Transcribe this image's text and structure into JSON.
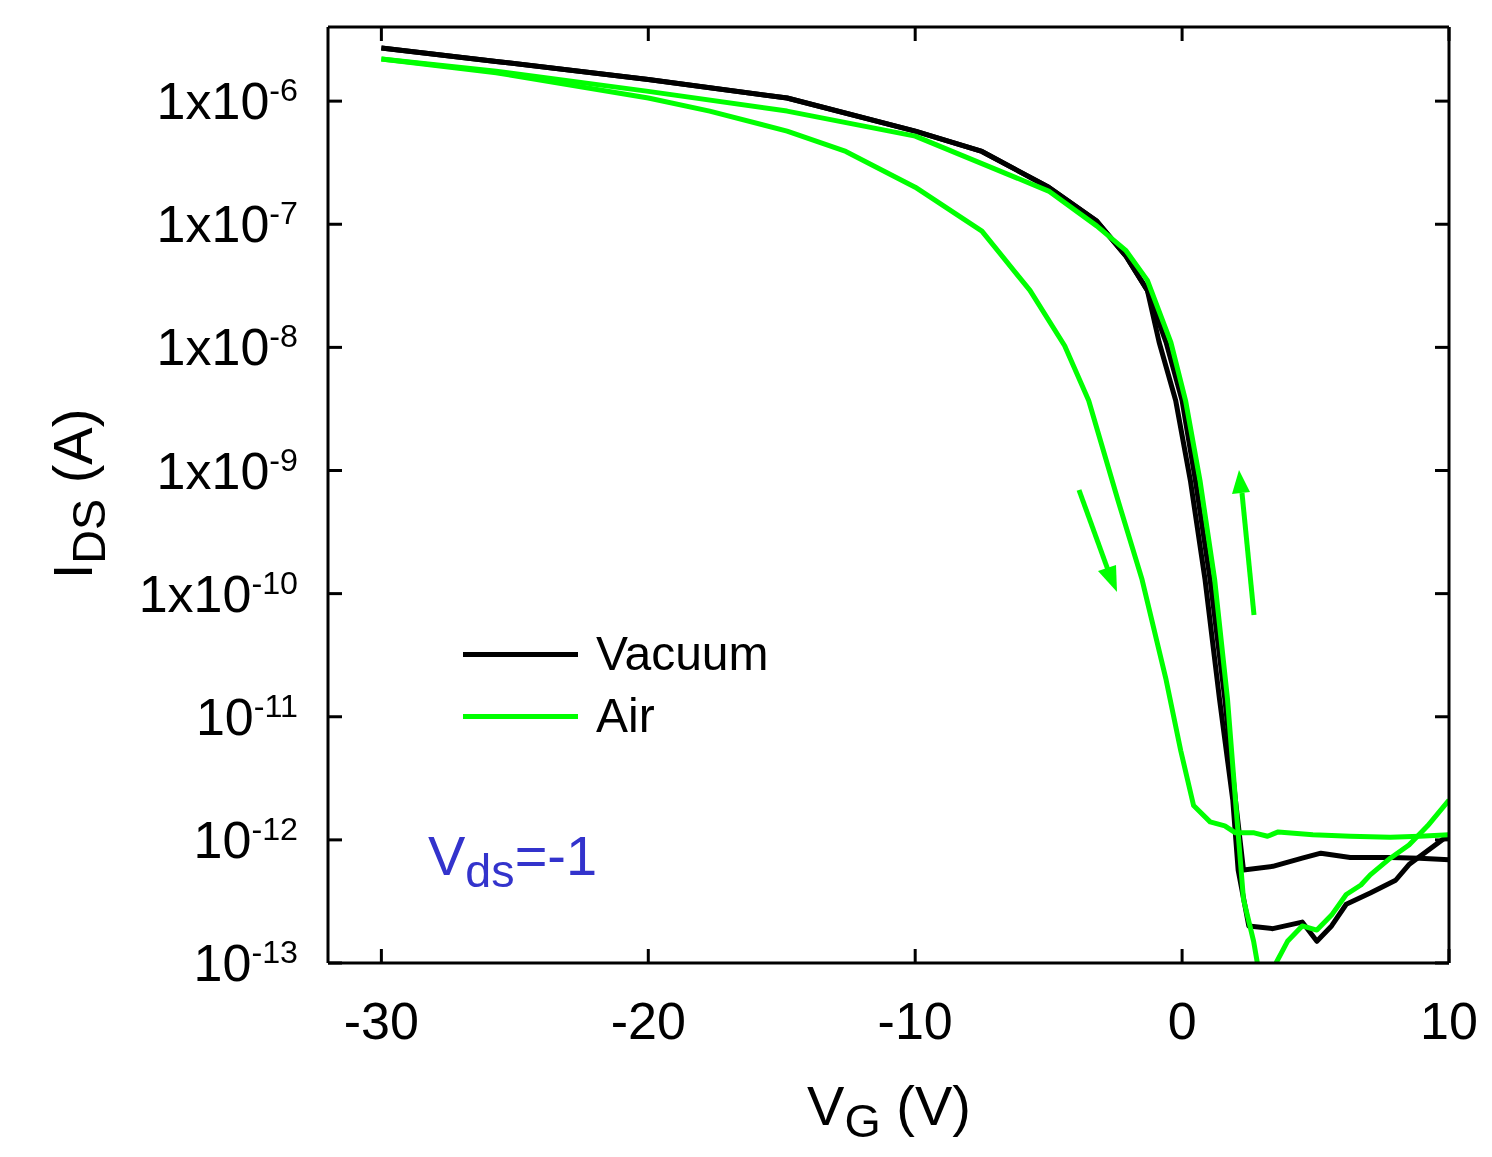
{
  "chart_data": {
    "type": "line",
    "xlabel": "V$_{G}$ (V)",
    "ylabel": "I$_{DS}$ (A)",
    "xlim": [
      -32,
      10
    ],
    "xticks": [
      -30,
      -20,
      -10,
      0,
      10
    ],
    "ylim": [
      1e-13,
      4e-06
    ],
    "log": true,
    "yticks": [
      {
        "value": 1e-06,
        "label": "1x10$^{-6}$"
      },
      {
        "value": 1e-07,
        "label": "1x10$^{-7}$"
      },
      {
        "value": 1e-08,
        "label": "1x10$^{-8}$"
      },
      {
        "value": 1e-09,
        "label": "1x10$^{-9}$"
      },
      {
        "value": 1e-10,
        "label": "1x10$^{-10}$"
      },
      {
        "value": 1e-11,
        "label": "10$^{-11}$"
      },
      {
        "value": 1e-12,
        "label": "10$^{-12}$"
      },
      {
        "value": 1e-13,
        "label": "10$^{-13}$"
      }
    ],
    "grid": false,
    "legend": "bottom left",
    "marker": "none",
    "line_style": "solid",
    "annotations": [
      "V$_{ds}$=-1"
    ],
    "series": [
      {
        "name": "Vacuum",
        "color": "#000000",
        "x": [
          -30,
          -25.7,
          -20,
          -14.8,
          -10,
          -7.5,
          -5,
          -3.2,
          -2.1,
          -1.3,
          -0.6,
          0,
          0.5,
          1.05,
          1.6,
          2,
          2.3,
          3.4,
          4.5,
          5.2,
          6.3,
          7.8,
          8.9,
          10
        ],
        "values": [
          2.7e-06,
          2.1e-06,
          1.5e-06,
          1.06e-06,
          5.7e-07,
          3.9e-07,
          2e-07,
          1.06e-07,
          5.5e-08,
          2.9e-08,
          1.1e-08,
          3.7e-09,
          8.3e-10,
          1.3e-10,
          1.4e-11,
          2.1e-12,
          5.7e-13,
          6.1e-13,
          7.1e-13,
          7.8e-13,
          7.2e-13,
          7.2e-13,
          7.1e-13,
          6.9e-13
        ]
      },
      {
        "color": "#000000",
        "x": [
          -30,
          -25.7,
          -20,
          -14.8,
          -10,
          -7.5,
          -5,
          -3.2,
          -2.1,
          -1.3,
          -0.86,
          -0.24,
          0.31,
          0.86,
          1.4,
          1.9,
          2.1,
          2.5,
          3.4,
          4.5,
          5.05,
          5.6,
          6.15,
          7.05,
          8,
          8.5,
          10
        ],
        "values": [
          2.7e-06,
          2.1e-06,
          1.5e-06,
          1.06e-06,
          5.7e-07,
          3.9e-07,
          2e-07,
          1.06e-07,
          5.5e-08,
          2.9e-08,
          1.1e-08,
          3.7e-09,
          8.3e-10,
          1.3e-10,
          1.4e-11,
          2.1e-12,
          5.7e-13,
          2e-13,
          1.9e-13,
          2.15e-13,
          1.5e-13,
          2e-13,
          3e-13,
          3.7e-13,
          4.7e-13,
          6.3e-13,
          1.1e-12
        ]
      },
      {
        "name": "Air",
        "color": "#00ff00",
        "x": [
          -30,
          -25.7,
          -20,
          -14.8,
          -10,
          -5,
          -3.2,
          -2.1,
          -1.3,
          -0.42,
          0.13,
          0.67,
          1.22,
          1.7,
          2,
          2.3,
          2.68,
          2.82,
          3.2,
          3.52,
          3.95,
          4.5,
          5.05,
          5.6,
          6.15,
          6.7,
          7.05,
          7.8,
          8.5,
          9.2,
          10
        ],
        "values": [
          2.2e-06,
          1.75e-06,
          1.2e-06,
          8.3e-07,
          5.2e-07,
          1.86e-07,
          9.7e-08,
          6.1e-08,
          3.5e-08,
          1.1e-08,
          3.7e-09,
          8.3e-10,
          1.3e-10,
          1.4e-11,
          2.1e-12,
          3.3e-13,
          1.5e-13,
          1e-13,
          null,
          1e-13,
          1.5e-13,
          2e-13,
          1.85e-13,
          2.45e-13,
          3.6e-13,
          4.3e-13,
          5.2e-13,
          7.1e-13,
          9.1e-13,
          1.3e-12,
          2.1e-12
        ]
      },
      {
        "color": "#00ff00",
        "x": [
          -30,
          -25.7,
          -20,
          -17.7,
          -14.8,
          -12.6,
          -10,
          -7.5,
          -5.7,
          -4.4,
          -3.5,
          -2.4,
          -1.5,
          -0.6,
          -0.05,
          0.43,
          1.05,
          1.6,
          2,
          2.7,
          3.2,
          3.6,
          4.9,
          6.3,
          7.8,
          8.9,
          10
        ],
        "values": [
          2.2e-06,
          1.7e-06,
          1.06e-06,
          8.3e-07,
          5.7e-07,
          3.9e-07,
          2e-07,
          8.8e-08,
          2.9e-08,
          1.03e-08,
          3.7e-09,
          5.7e-10,
          1.3e-10,
          2e-11,
          5.3e-12,
          1.9e-12,
          1.4e-12,
          1.3e-12,
          1.14e-12,
          1.14e-12,
          1.07e-12,
          1.16e-12,
          1.1e-12,
          1.07e-12,
          1.05e-12,
          1.07e-12,
          1.1e-12
        ]
      }
    ]
  }
}
